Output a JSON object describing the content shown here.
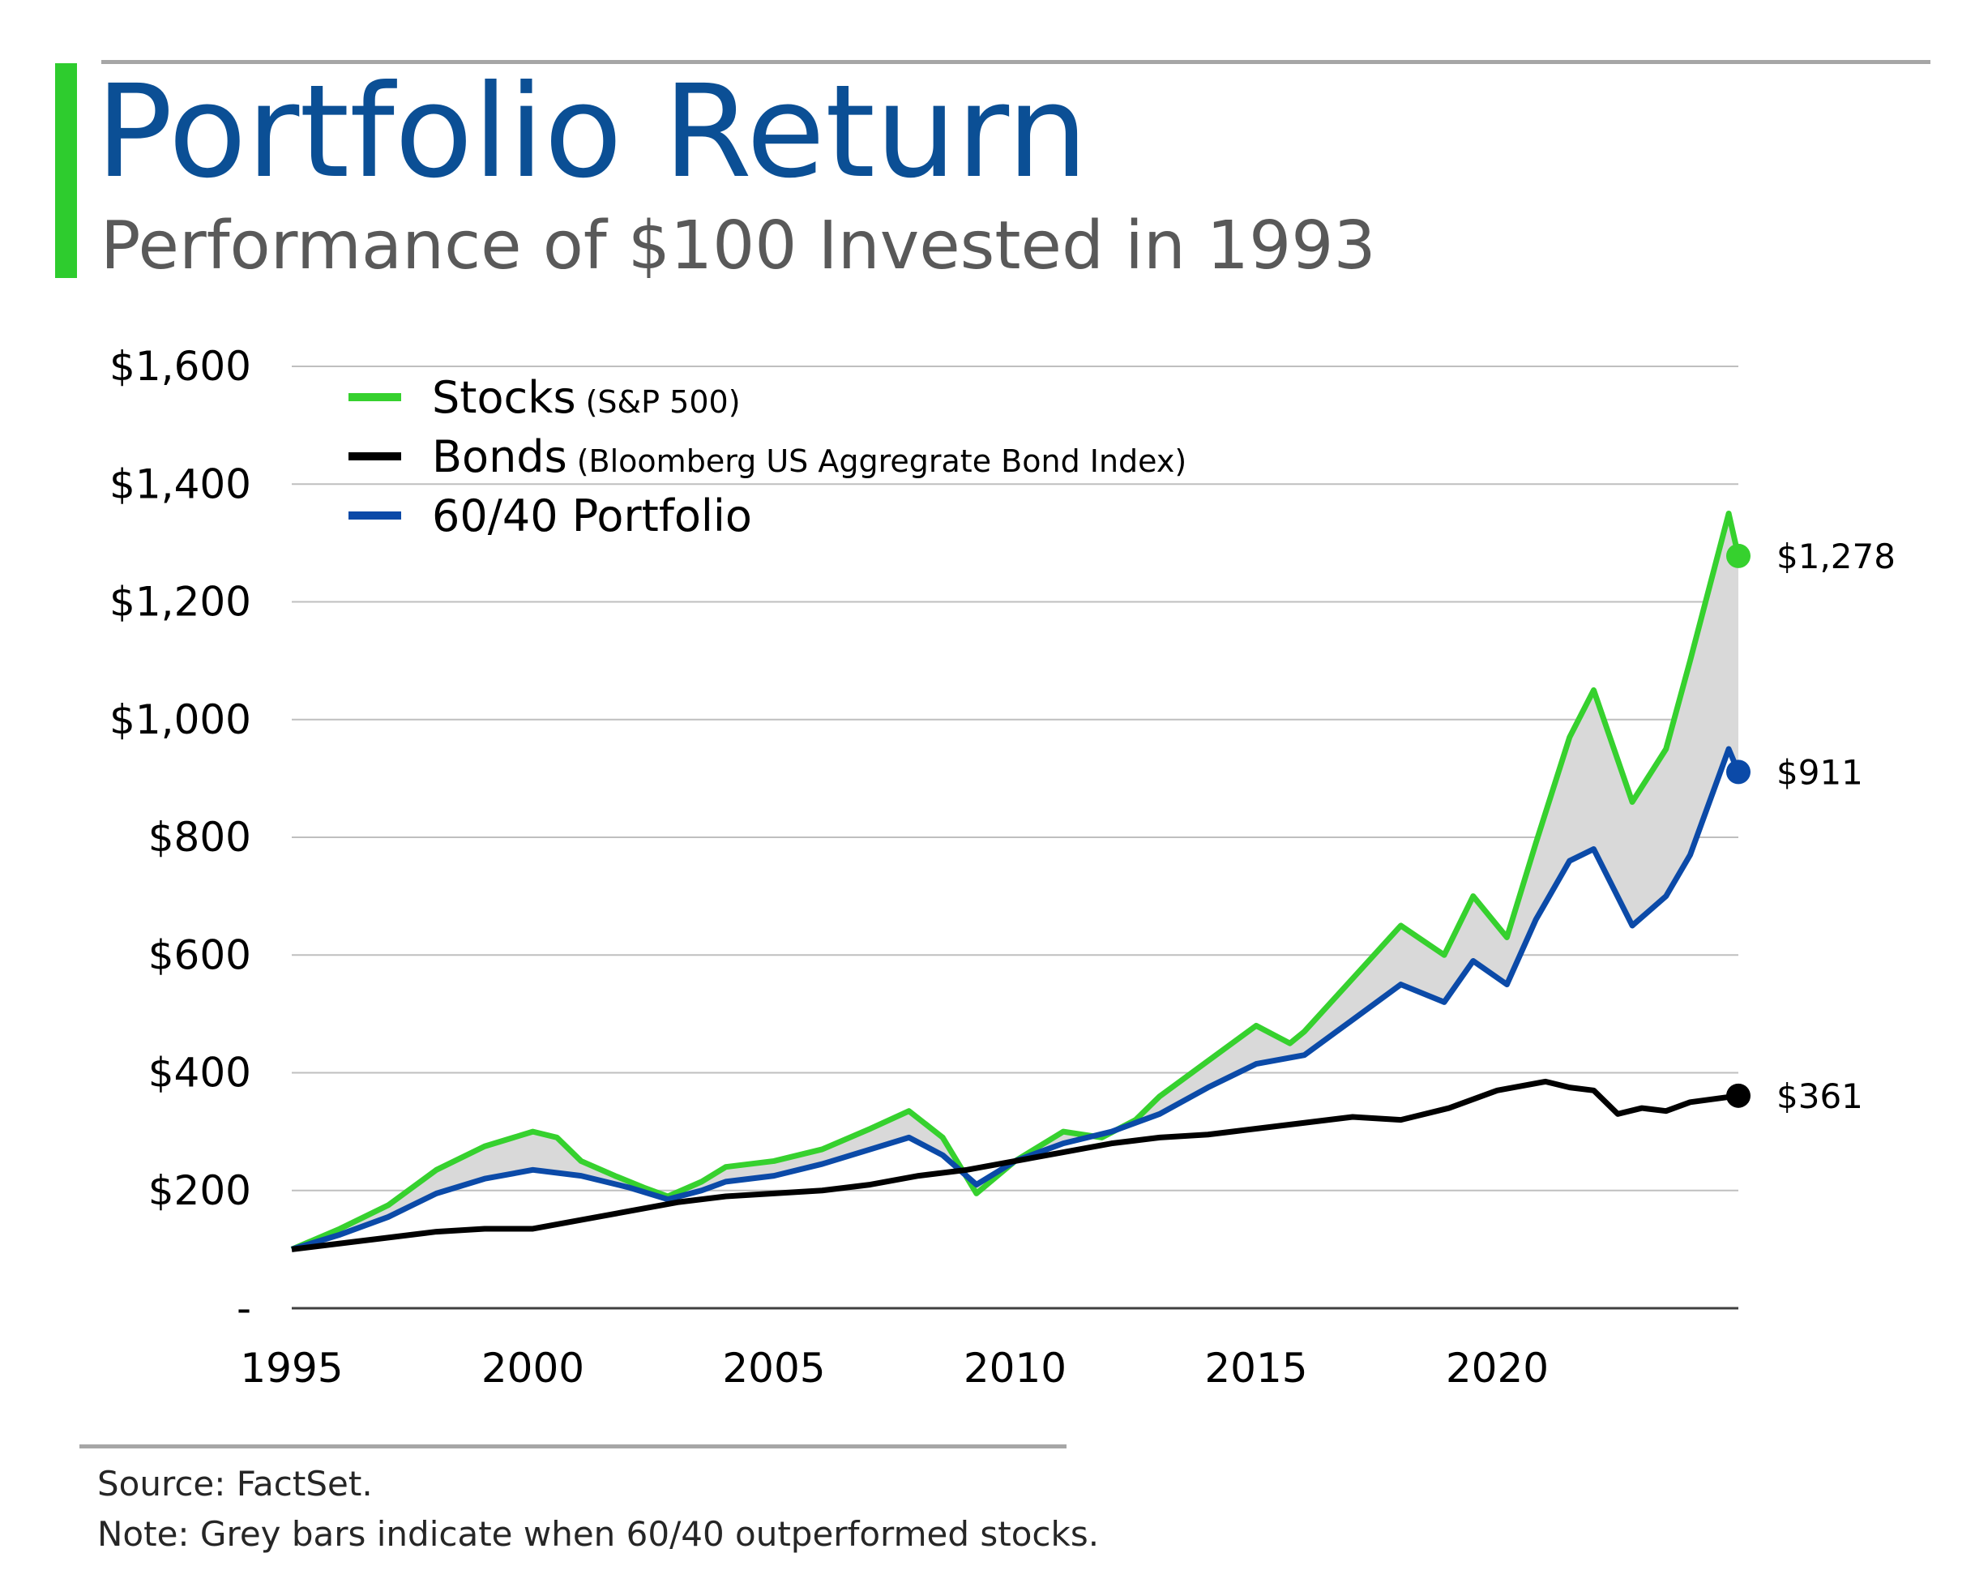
{
  "header": {
    "title": "Portfolio Return",
    "subtitle": "Performance of $100 Invested in 1993"
  },
  "footer": {
    "source": "Source: FactSet.",
    "note": "Note: Grey bars indicate when 60/40 outperformed stocks."
  },
  "colors": {
    "title": "#0B4F95",
    "accent": "#2ECC2E",
    "stocks": "#36D12E",
    "bonds": "#000000",
    "portfolio": "#0B4AA8",
    "fill": "#D9D9D9",
    "grid": "#BFBFBF"
  },
  "chart_data": {
    "type": "line",
    "title": "Portfolio Return",
    "subtitle": "Performance of $100 Invested in 1993",
    "xlabel": "",
    "ylabel": "",
    "xlim": [
      1995,
      2025
    ],
    "ylim": [
      0,
      1600
    ],
    "x_ticks": [
      1995,
      2000,
      2005,
      2010,
      2015,
      2020
    ],
    "x_tick_labels": [
      "1995",
      "2000",
      "2005",
      "2010",
      "2015",
      "2020"
    ],
    "y_ticks": [
      0,
      200,
      400,
      600,
      800,
      1000,
      1200,
      1400,
      1600
    ],
    "y_tick_labels": [
      "-",
      "$200",
      "$400",
      "$600",
      "$800",
      "$1,000",
      "$1,200",
      "$1,400",
      "$1,600"
    ],
    "grid": "horizontal",
    "legend_position": "top-left",
    "legend": [
      {
        "key": "stocks",
        "label": "Stocks",
        "sublabel": "(S&P 500)"
      },
      {
        "key": "bonds",
        "label": "Bonds",
        "sublabel": "(Bloomberg US Aggregrate Bond Index)"
      },
      {
        "key": "portfolio",
        "label": "60/40 Portfolio",
        "sublabel": ""
      }
    ],
    "fill_between": [
      "stocks",
      "portfolio"
    ],
    "series": [
      {
        "key": "stocks",
        "name": "Stocks",
        "end_label": "$1,278",
        "points": [
          [
            1995,
            100
          ],
          [
            1996,
            135
          ],
          [
            1997,
            175
          ],
          [
            1998,
            235
          ],
          [
            1999,
            275
          ],
          [
            2000,
            300
          ],
          [
            2000.5,
            290
          ],
          [
            2001,
            250
          ],
          [
            2001.7,
            225
          ],
          [
            2002.3,
            205
          ],
          [
            2002.8,
            190
          ],
          [
            2003.5,
            215
          ],
          [
            2004,
            240
          ],
          [
            2005,
            250
          ],
          [
            2006,
            270
          ],
          [
            2007,
            305
          ],
          [
            2007.8,
            335
          ],
          [
            2008.5,
            290
          ],
          [
            2009.2,
            195
          ],
          [
            2010,
            250
          ],
          [
            2011,
            300
          ],
          [
            2011.8,
            290
          ],
          [
            2012.5,
            320
          ],
          [
            2013,
            360
          ],
          [
            2014,
            420
          ],
          [
            2015,
            480
          ],
          [
            2015.7,
            450
          ],
          [
            2016,
            470
          ],
          [
            2017,
            560
          ],
          [
            2018,
            650
          ],
          [
            2018.9,
            600
          ],
          [
            2019.5,
            700
          ],
          [
            2020.2,
            630
          ],
          [
            2020.8,
            790
          ],
          [
            2021.5,
            970
          ],
          [
            2022,
            1050
          ],
          [
            2022.8,
            860
          ],
          [
            2023.5,
            950
          ],
          [
            2024,
            1100
          ],
          [
            2024.8,
            1350
          ],
          [
            2025,
            1278
          ]
        ]
      },
      {
        "key": "bonds",
        "name": "Bonds",
        "end_label": "$361",
        "points": [
          [
            1995,
            100
          ],
          [
            1996,
            110
          ],
          [
            1997,
            120
          ],
          [
            1998,
            130
          ],
          [
            1999,
            135
          ],
          [
            2000,
            135
          ],
          [
            2001,
            150
          ],
          [
            2002,
            165
          ],
          [
            2003,
            180
          ],
          [
            2004,
            190
          ],
          [
            2005,
            195
          ],
          [
            2006,
            200
          ],
          [
            2007,
            210
          ],
          [
            2008,
            225
          ],
          [
            2009,
            235
          ],
          [
            2010,
            250
          ],
          [
            2011,
            265
          ],
          [
            2012,
            280
          ],
          [
            2013,
            290
          ],
          [
            2014,
            295
          ],
          [
            2015,
            305
          ],
          [
            2016,
            315
          ],
          [
            2017,
            325
          ],
          [
            2018,
            320
          ],
          [
            2019,
            340
          ],
          [
            2020,
            370
          ],
          [
            2021,
            385
          ],
          [
            2021.5,
            375
          ],
          [
            2022,
            370
          ],
          [
            2022.5,
            330
          ],
          [
            2023,
            340
          ],
          [
            2023.5,
            335
          ],
          [
            2024,
            350
          ],
          [
            2025,
            361
          ]
        ]
      },
      {
        "key": "portfolio",
        "name": "60/40 Portfolio",
        "end_label": "$911",
        "points": [
          [
            1995,
            100
          ],
          [
            1996,
            125
          ],
          [
            1997,
            155
          ],
          [
            1998,
            195
          ],
          [
            1999,
            220
          ],
          [
            2000,
            235
          ],
          [
            2001,
            225
          ],
          [
            2002,
            205
          ],
          [
            2002.8,
            185
          ],
          [
            2003.5,
            200
          ],
          [
            2004,
            215
          ],
          [
            2005,
            225
          ],
          [
            2006,
            245
          ],
          [
            2007,
            270
          ],
          [
            2007.8,
            290
          ],
          [
            2008.5,
            260
          ],
          [
            2009.2,
            210
          ],
          [
            2010,
            250
          ],
          [
            2011,
            280
          ],
          [
            2012,
            300
          ],
          [
            2013,
            330
          ],
          [
            2014,
            375
          ],
          [
            2015,
            415
          ],
          [
            2016,
            430
          ],
          [
            2017,
            490
          ],
          [
            2018,
            550
          ],
          [
            2018.9,
            520
          ],
          [
            2019.5,
            590
          ],
          [
            2020.2,
            550
          ],
          [
            2020.8,
            660
          ],
          [
            2021.5,
            760
          ],
          [
            2022,
            780
          ],
          [
            2022.8,
            650
          ],
          [
            2023.5,
            700
          ],
          [
            2024,
            770
          ],
          [
            2024.8,
            950
          ],
          [
            2025,
            911
          ]
        ]
      }
    ]
  }
}
